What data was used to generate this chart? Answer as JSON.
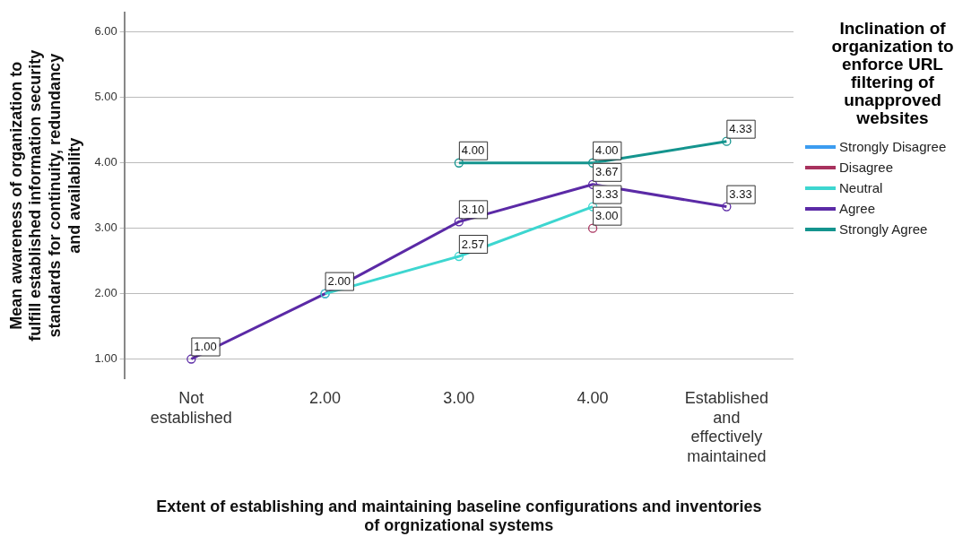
{
  "chart_data": {
    "type": "line",
    "xlabel": "Extent of establishing and maintaining baseline configurations and inventories of orgnizational systems",
    "ylabel": "Mean awareness of organization to fulfill established information security standards for continuity, redundancy and availability",
    "legend_title": "Inclination of organization to enforce URL filtering of unapproved websites",
    "categories": [
      "Not established",
      "2.00",
      "3.00",
      "4.00",
      "Established and effectively maintained"
    ],
    "series": [
      {
        "name": "Strongly Disagree",
        "color": "#3c9cf0",
        "values": [
          null,
          null,
          null,
          null,
          null
        ]
      },
      {
        "name": "Disagree",
        "color": "#a8325e",
        "values": [
          null,
          null,
          null,
          3.0,
          null
        ],
        "value_labels": [
          null,
          null,
          null,
          "3.00",
          null
        ]
      },
      {
        "name": "Neutral",
        "color": "#3dd6d0",
        "values": [
          null,
          2.0,
          2.57,
          3.33,
          null
        ],
        "value_labels": [
          null,
          "2.00",
          "2.57",
          "3.33",
          null
        ]
      },
      {
        "name": "Agree",
        "color": "#5b2aa6",
        "values": [
          1.0,
          2.0,
          3.1,
          3.67,
          3.33
        ],
        "value_labels": [
          "1.00",
          null,
          "3.10",
          "3.67",
          "3.33"
        ]
      },
      {
        "name": "Strongly Agree",
        "color": "#14948e",
        "values": [
          null,
          null,
          4.0,
          4.0,
          4.33
        ],
        "value_labels": [
          null,
          null,
          "4.00",
          "4.00",
          "4.33"
        ]
      }
    ],
    "ylim": [
      0.7,
      6.3
    ],
    "yticks": [
      {
        "value": 1,
        "label": "1.00"
      },
      {
        "value": 2,
        "label": "2.00"
      },
      {
        "value": 3,
        "label": "3.00"
      },
      {
        "value": 4,
        "label": "4.00"
      },
      {
        "value": 5,
        "label": "5.00"
      },
      {
        "value": 6,
        "label": "6.00"
      }
    ],
    "grid": "y",
    "legend": "right",
    "marker": "circle",
    "line_style": "solid"
  }
}
